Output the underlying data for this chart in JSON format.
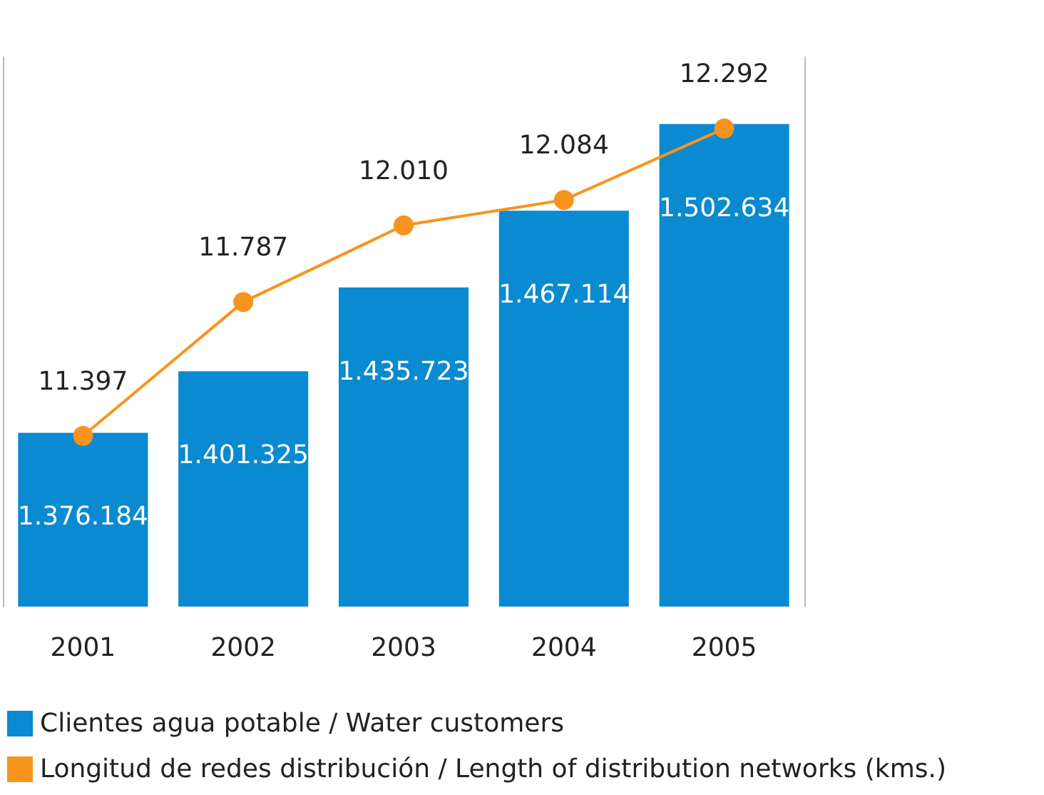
{
  "chart_data": {
    "type": "bar",
    "categories": [
      "2001",
      "2002",
      "2003",
      "2004",
      "2005"
    ],
    "series": [
      {
        "name": "Clientes agua potable / Water customers",
        "color": "#0a8ad0",
        "values": [
          1376184,
          1401325,
          1435723,
          1467114,
          1502634
        ],
        "value_labels": [
          "1.376.184",
          "1.401.325",
          "1.435.723",
          "1.467.114",
          "1.502.634"
        ]
      },
      {
        "name": "Longitud de redes distribución / Length of distribution networks (kms.)",
        "type": "line",
        "axis": "y2",
        "color": "#f7941d",
        "marker": "circle",
        "values": [
          11397,
          11787,
          12010,
          12084,
          12292
        ],
        "value_labels": [
          "11.397",
          "11.787",
          "12.010",
          "12.084",
          "12.292"
        ]
      }
    ],
    "ylim": [
      1305000,
      1530000
    ],
    "y2lim": [
      10900,
      12500
    ],
    "tick_labels": "x",
    "legend": "bottom"
  }
}
